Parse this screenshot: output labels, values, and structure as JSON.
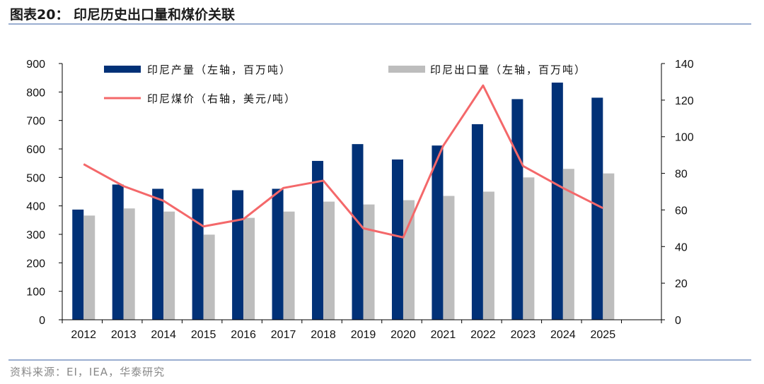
{
  "figure": {
    "title": "图表20：  印尼历史出口量和煤价关联",
    "source": "资料来源：EI，IEA，华泰研究"
  },
  "colors": {
    "production": "#013177",
    "export": "#bdbdbd",
    "price": "#f4686a",
    "rule": "#9aaed0"
  },
  "chart_data": {
    "type": "bar",
    "categories": [
      "2012",
      "2013",
      "2014",
      "2015",
      "2016",
      "2017",
      "2018",
      "2019",
      "2020",
      "2021",
      "2022",
      "2023",
      "2024",
      "2025"
    ],
    "series": [
      {
        "name": "印尼产量（左轴，百万吨）",
        "type": "bar",
        "axis": "left",
        "values": [
          387,
          475,
          460,
          460,
          455,
          460,
          558,
          617,
          563,
          612,
          687,
          775,
          833,
          780
        ]
      },
      {
        "name": "印尼出口量（左轴，百万吨）",
        "type": "bar",
        "axis": "left",
        "values": [
          366,
          391,
          380,
          299,
          358,
          380,
          415,
          405,
          420,
          435,
          450,
          500,
          530,
          514
        ]
      },
      {
        "name": "印尼煤价（右轴，美元/吨）",
        "type": "line",
        "axis": "right",
        "values": [
          85,
          73,
          65,
          51,
          55,
          72,
          76,
          50,
          45,
          95,
          128,
          84,
          72,
          61
        ]
      }
    ],
    "ylim_left": [
      0,
      900
    ],
    "ylim_right": [
      0,
      140
    ],
    "yticks_left": [
      "0",
      "100",
      "200",
      "300",
      "400",
      "500",
      "600",
      "700",
      "800",
      "900"
    ],
    "yticks_right": [
      "0",
      "20",
      "40",
      "60",
      "80",
      "100",
      "120",
      "140"
    ],
    "legend": "top",
    "grid": false
  }
}
